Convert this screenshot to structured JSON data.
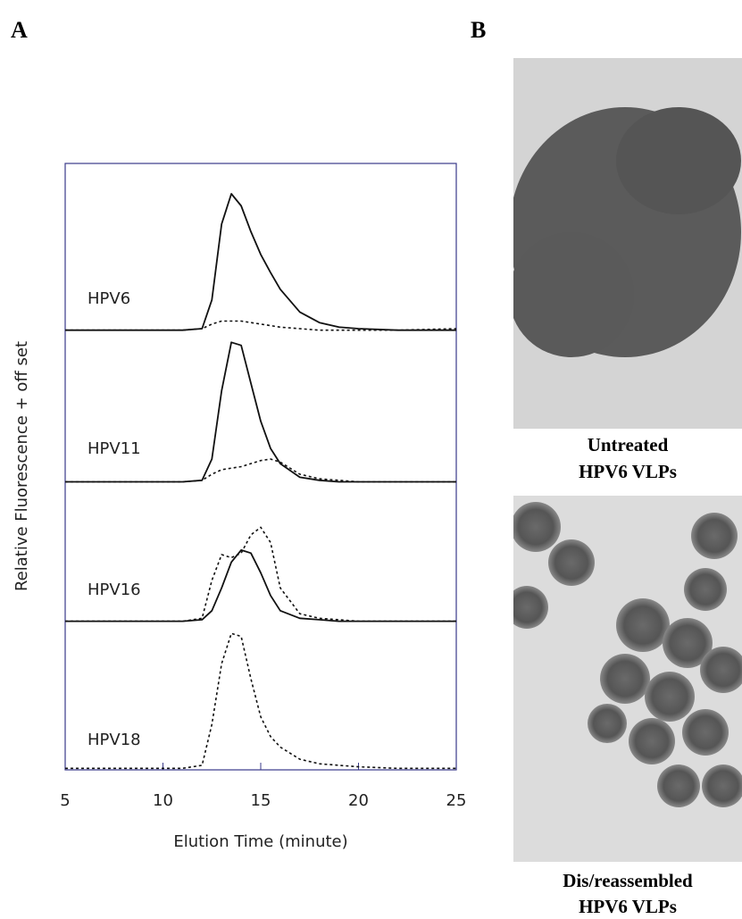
{
  "panel_labels": [
    "A",
    "B"
  ],
  "chart_data": {
    "type": "line",
    "x_label": "Elution Time (minute)",
    "y_label": "Relative Fluorescence + off set",
    "xlim": [
      5,
      25
    ],
    "xticks": [
      5,
      10,
      15,
      20,
      25
    ],
    "ylim": [
      0,
      4
    ],
    "curve_labels": [
      "HPV6",
      "HPV11",
      "HPV16",
      "HPV18"
    ],
    "x": [
      5,
      11,
      12,
      12.5,
      13,
      13.5,
      14,
      14.5,
      15,
      15.5,
      16,
      17,
      18,
      19,
      20,
      22,
      25
    ],
    "series": [
      {
        "style": "solid",
        "color": "#111111",
        "values": [
          2.9,
          2.9,
          2.91,
          3.1,
          3.6,
          3.8,
          3.72,
          3.55,
          3.4,
          3.28,
          3.17,
          3.02,
          2.95,
          2.92,
          2.91,
          2.9,
          2.9
        ]
      },
      {
        "style": "dashed",
        "color": "#111111",
        "values": [
          2.9,
          2.9,
          2.91,
          2.94,
          2.96,
          2.96,
          2.96,
          2.95,
          2.94,
          2.93,
          2.92,
          2.91,
          2.9,
          2.9,
          2.9,
          2.9,
          2.91
        ]
      },
      {
        "style": "solid",
        "color": "#111111",
        "values": [
          1.9,
          1.9,
          1.91,
          2.05,
          2.5,
          2.82,
          2.8,
          2.55,
          2.3,
          2.12,
          2.02,
          1.93,
          1.91,
          1.9,
          1.9,
          1.9,
          1.9
        ]
      },
      {
        "style": "dashed",
        "color": "#111111",
        "values": [
          1.9,
          1.9,
          1.91,
          1.95,
          1.98,
          1.99,
          2.0,
          2.02,
          2.04,
          2.05,
          2.03,
          1.95,
          1.92,
          1.91,
          1.9,
          1.9,
          1.9
        ]
      },
      {
        "style": "solid",
        "color": "#111111",
        "values": [
          0.98,
          0.98,
          0.99,
          1.05,
          1.2,
          1.37,
          1.45,
          1.43,
          1.3,
          1.15,
          1.05,
          1.0,
          0.99,
          0.98,
          0.98,
          0.98,
          0.98
        ]
      },
      {
        "style": "dashed",
        "color": "#111111",
        "values": [
          0.98,
          0.98,
          1.0,
          1.25,
          1.42,
          1.4,
          1.43,
          1.55,
          1.6,
          1.5,
          1.2,
          1.03,
          1.0,
          0.99,
          0.98,
          0.98,
          0.98
        ]
      },
      {
        "style": "dashed",
        "color": "#111111",
        "values": [
          0.01,
          0.01,
          0.03,
          0.3,
          0.7,
          0.9,
          0.88,
          0.6,
          0.35,
          0.22,
          0.15,
          0.07,
          0.04,
          0.03,
          0.02,
          0.01,
          0.01
        ]
      }
    ]
  },
  "micrographs": [
    {
      "caption": [
        "Untreated",
        "HPV6 VLPs"
      ]
    },
    {
      "caption": [
        "Dis/reassembled",
        "HPV6 VLPs"
      ]
    }
  ]
}
